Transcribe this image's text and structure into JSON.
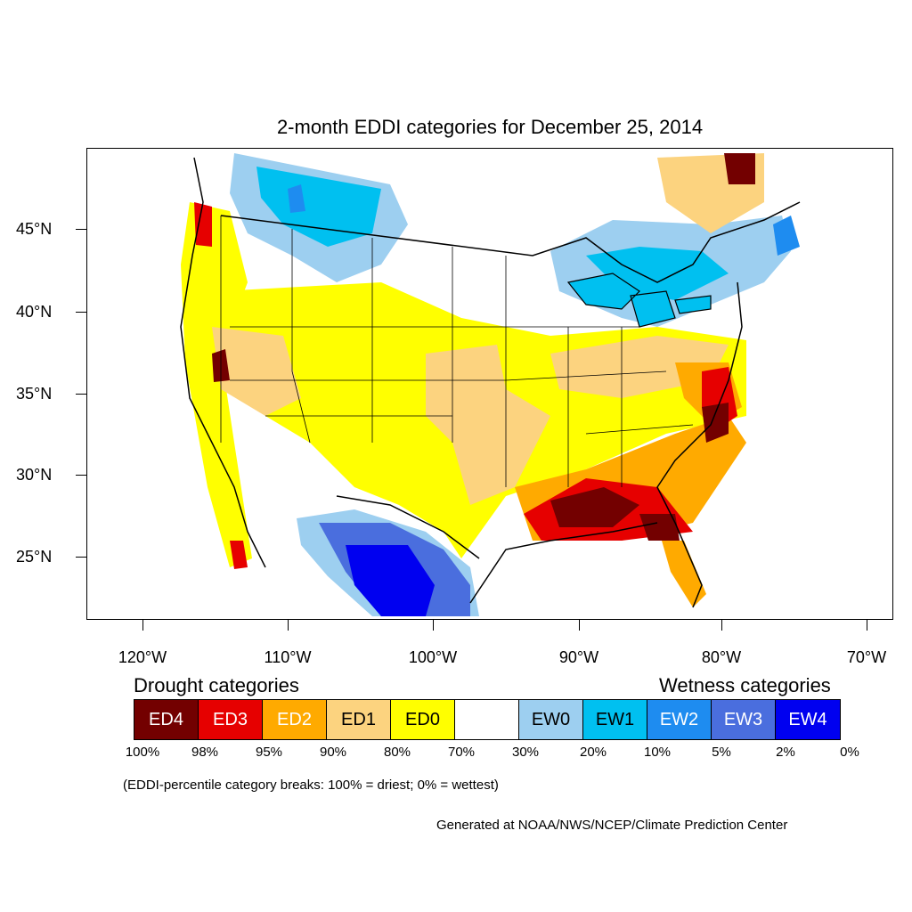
{
  "title": "2-month EDDI categories for December 25, 2014",
  "lat_labels": [
    "45°N",
    "40°N",
    "35°N",
    "30°N",
    "25°N"
  ],
  "lon_labels": [
    "120°W",
    "110°W",
    "100°W",
    "90°W",
    "80°W",
    "70°W"
  ],
  "legend": {
    "drought_heading": "Drought categories",
    "wetness_heading": "Wetness categories",
    "categories": [
      {
        "label": "ED4",
        "color": "#730000",
        "text_color": "#ffffff"
      },
      {
        "label": "ED3",
        "color": "#e60000",
        "text_color": "#ffffff"
      },
      {
        "label": "ED2",
        "color": "#ffaa00",
        "text_color": "#ffffff"
      },
      {
        "label": "ED1",
        "color": "#fcd37f",
        "text_color": "#000000"
      },
      {
        "label": "ED0",
        "color": "#ffff00",
        "text_color": "#000000"
      },
      {
        "label": "",
        "color": "#ffffff",
        "text_color": "#000000"
      },
      {
        "label": "EW0",
        "color": "#9dcff0",
        "text_color": "#000000"
      },
      {
        "label": "EW1",
        "color": "#00c0f0",
        "text_color": "#000000"
      },
      {
        "label": "EW2",
        "color": "#1e8cf0",
        "text_color": "#ffffff"
      },
      {
        "label": "EW3",
        "color": "#4a6ede",
        "text_color": "#ffffff"
      },
      {
        "label": "EW4",
        "color": "#0000f0",
        "text_color": "#ffffff"
      }
    ],
    "breaks": [
      "100%",
      "98%",
      "95%",
      "90%",
      "80%",
      "70%",
      "30%",
      "20%",
      "10%",
      "5%",
      "2%",
      "0%"
    ]
  },
  "note": "(EDDI-percentile category breaks: 100% = driest; 0% = wettest)",
  "credit": "Generated at NOAA/NWS/NCEP/Climate Prediction Center"
}
